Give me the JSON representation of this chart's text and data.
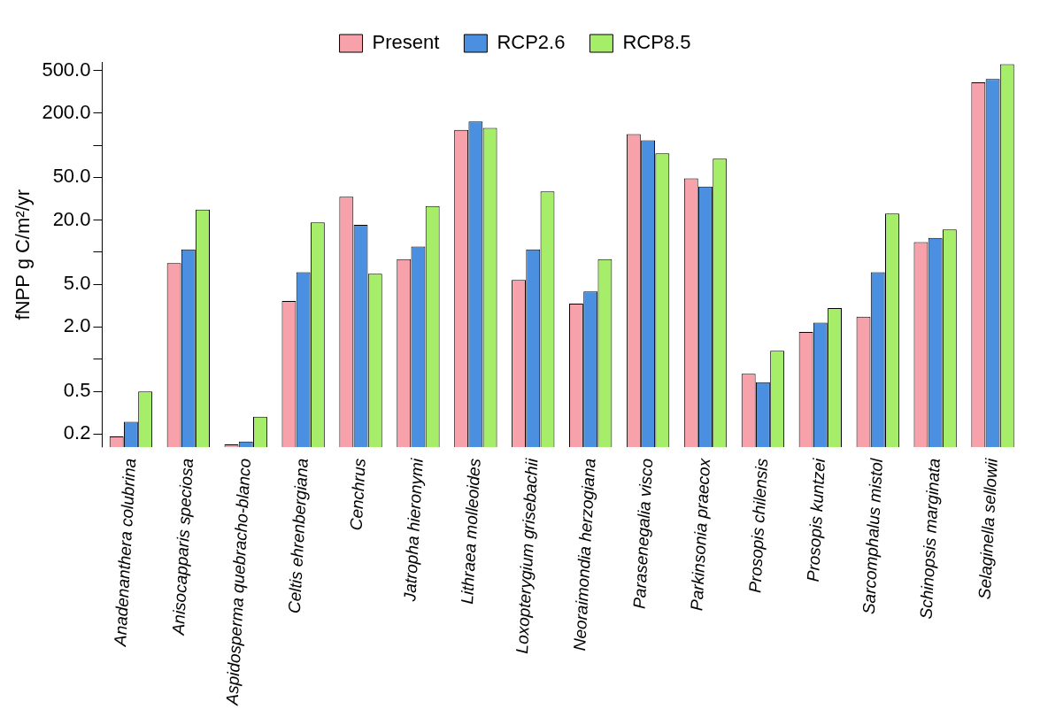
{
  "chart_data": {
    "type": "bar",
    "ylabel": "fNPP g C/m²/yr",
    "log": "y",
    "legend": "top",
    "grid": false,
    "categories": [
      "Anadenanthera colubrina",
      "Anisocapparis speciosa",
      "Aspidosperma quebracho-blanco",
      "Celtis ehrenbergiana",
      "Cenchrus",
      "Jatropha hieronymi",
      "Lithraea molleoides",
      "Loxopterygium grisebachii",
      "Neoraimondia herzogiana",
      "Parasenegalia visco",
      "Parkinsonia praecox",
      "Prosopis chilensis",
      "Prosopis kuntzei",
      "Sarcomphalus mistol",
      "Schinopsis marginata",
      "Selaginella sellowii"
    ],
    "series": [
      {
        "name": "Present",
        "color": "#f7a1ab",
        "values": [
          0.19,
          7.9,
          0.16,
          3.5,
          33,
          8.6,
          139,
          5.5,
          3.3,
          127,
          49,
          0.73,
          1.8,
          2.5,
          12.4,
          387
        ]
      },
      {
        "name": "RCP2.6",
        "color": "#4a8fe0",
        "values": [
          0.26,
          10.6,
          0.17,
          6.5,
          18,
          11.3,
          167,
          10.6,
          4.3,
          111,
          41,
          0.61,
          2.2,
          6.5,
          13.6,
          415
        ]
      },
      {
        "name": "RCP8.5",
        "color": "#a6ee6a",
        "values": [
          0.5,
          25,
          0.29,
          19,
          6.3,
          27,
          145,
          37,
          8.6,
          84,
          75,
          1.2,
          3,
          23,
          16.3,
          571
        ]
      }
    ],
    "ylim": [
      0.15,
      600
    ],
    "yticks": [
      {
        "value": 0.2,
        "label": "0.2"
      },
      {
        "value": 0.5,
        "label": "0.5"
      },
      {
        "value": 1,
        "label": null
      },
      {
        "value": 2,
        "label": "2.0"
      },
      {
        "value": 5,
        "label": "5.0"
      },
      {
        "value": 10,
        "label": null
      },
      {
        "value": 20,
        "label": "20.0"
      },
      {
        "value": 50,
        "label": "50.0"
      },
      {
        "value": 100,
        "label": null
      },
      {
        "value": 200,
        "label": "200.0"
      },
      {
        "value": 500,
        "label": "500.0"
      }
    ]
  }
}
